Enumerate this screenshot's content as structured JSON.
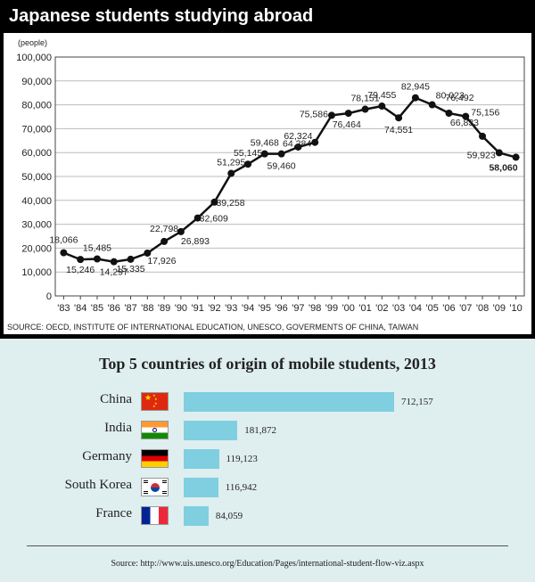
{
  "chart_data": [
    {
      "type": "line",
      "title": "Japanese students studying abroad",
      "ylabel": "(people)",
      "source": "SOURCE: OECD, INSTITUTE OF INTERNATIONAL EDUCATION, UNESCO, GOVERMENTS OF CHINA, TAIWAN",
      "ylim": [
        0,
        100000
      ],
      "grid": true,
      "yticks": [
        "0",
        "10,000",
        "20,000",
        "30,000",
        "40,000",
        "50,000",
        "60,000",
        "70,000",
        "80,000",
        "90,000",
        "100,000"
      ],
      "categories": [
        "'83",
        "'84",
        "'85",
        "'86",
        "'87",
        "'88",
        "'89",
        "'90",
        "'91",
        "'92",
        "'93",
        "'94",
        "'95",
        "'96",
        "'97",
        "'98",
        "'99",
        "'00",
        "'01",
        "'02",
        "'03",
        "'04",
        "'05",
        "'06",
        "'07",
        "'08",
        "'09",
        "'10"
      ],
      "values": [
        18066,
        15246,
        15485,
        14297,
        15335,
        17926,
        22798,
        26893,
        32609,
        39258,
        51295,
        55145,
        59468,
        59460,
        62324,
        64284,
        75586,
        76464,
        78151,
        79455,
        74551,
        82945,
        80023,
        76492,
        75156,
        66833,
        59923,
        58060
      ],
      "value_labels": [
        "18,066",
        "15,246",
        "15,485",
        "14,297",
        "15,335",
        "17,926",
        "22,798",
        "26,893",
        "32,609",
        "39,258",
        "51,295",
        "55,145",
        "59,468",
        "59,460",
        "62,324",
        "64,284",
        "75,586",
        "76,464",
        "78,151",
        "79,455",
        "74,551",
        "82,945",
        "80,023",
        "76,492",
        "75,156",
        "66,833",
        "59,923",
        "58,060"
      ]
    },
    {
      "type": "bar",
      "title": "Top 5 countries of origin of mobile students, 2013",
      "categories": [
        "China",
        "India",
        "Germany",
        "South Korea",
        "France"
      ],
      "values": [
        712157,
        181872,
        119123,
        116942,
        84059
      ],
      "value_labels": [
        "712,157",
        "181,872",
        "119,123",
        "116,942",
        "84,059"
      ],
      "icons": [
        "china-flag-icon",
        "india-flag-icon",
        "germany-flag-icon",
        "south-korea-flag-icon",
        "france-flag-icon"
      ],
      "source": "Source: http://www.uis.unesco.org/Education/Pages/international-student-flow-viz.aspx",
      "bar_color": "#7fcfe0"
    }
  ]
}
